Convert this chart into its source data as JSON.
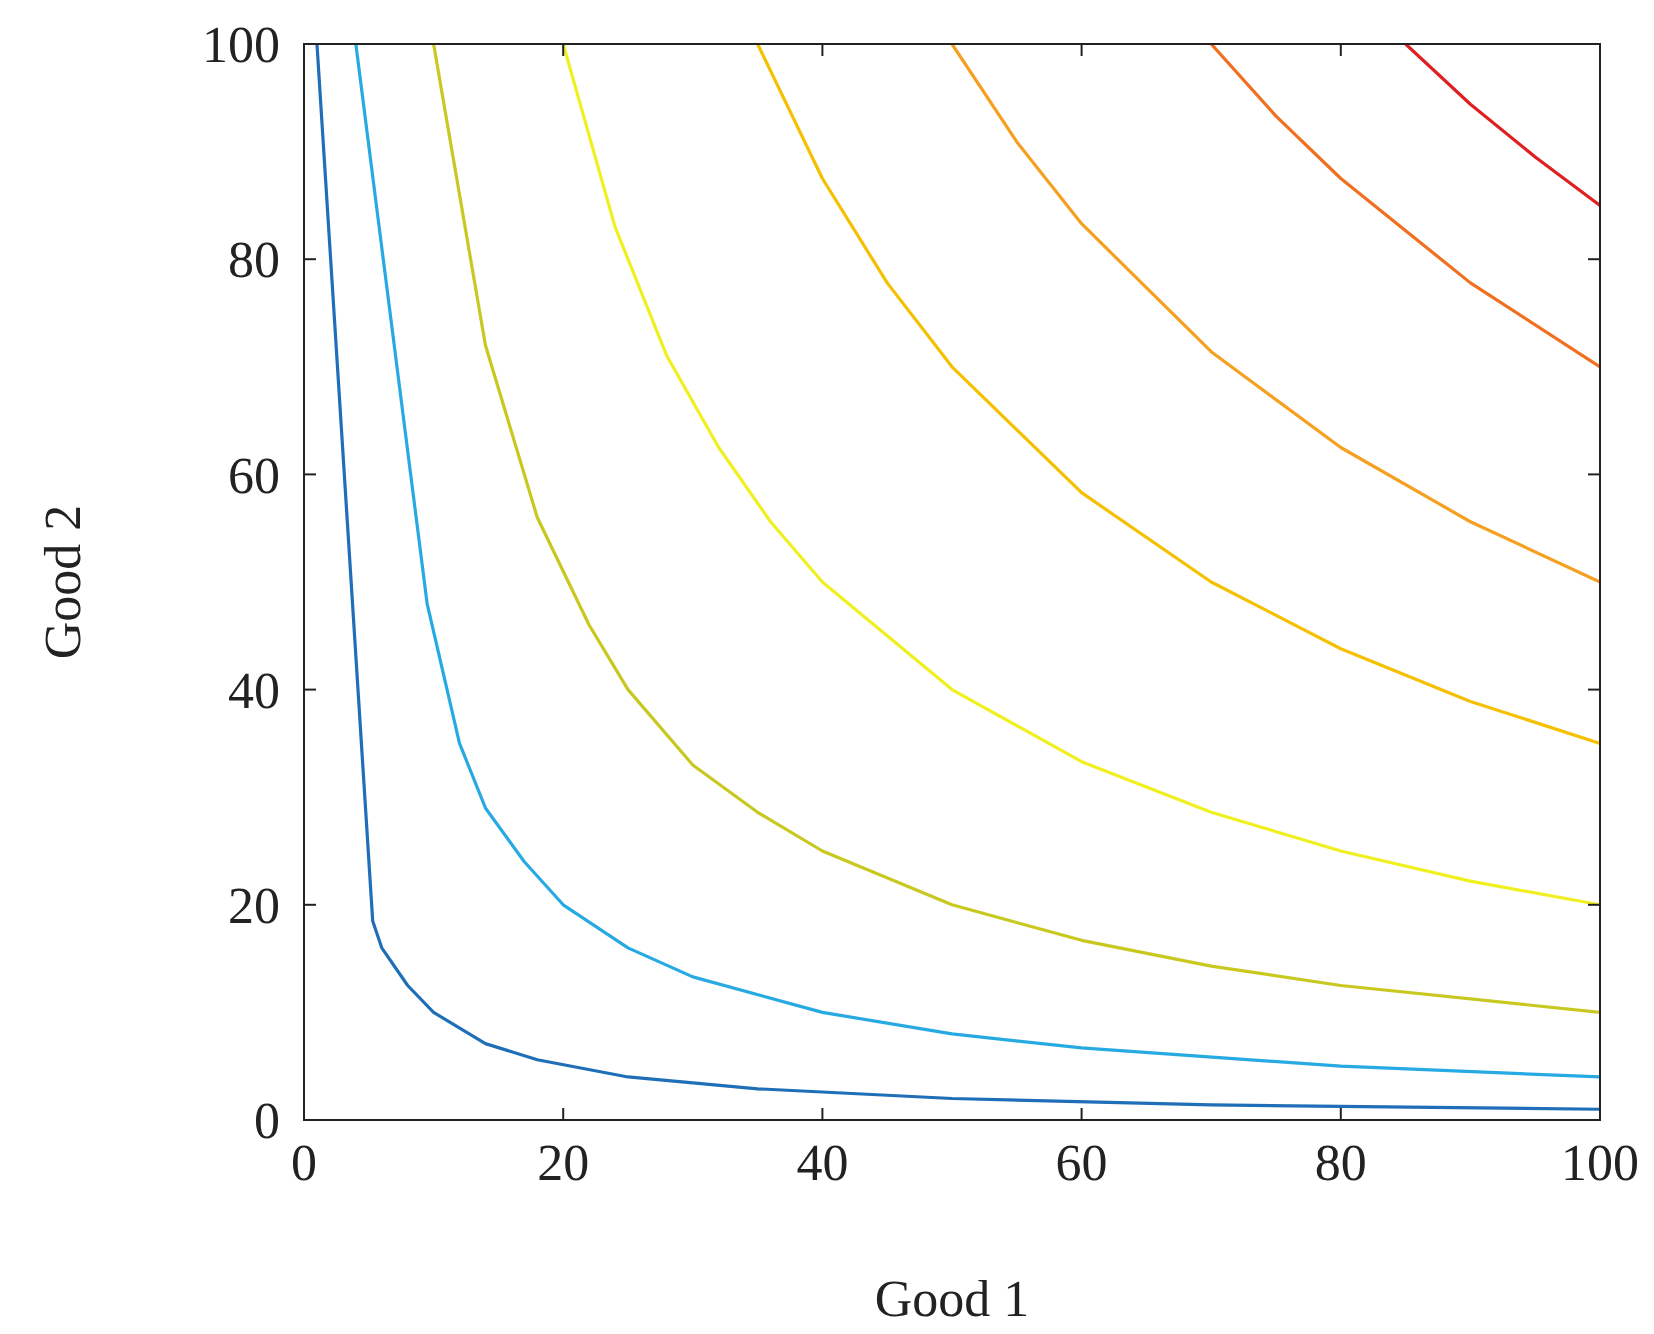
{
  "chart_data": {
    "type": "line",
    "xlabel": "Good 1",
    "ylabel": "Good 2",
    "xlim": [
      0,
      100
    ],
    "ylim": [
      0,
      100
    ],
    "xticks": [
      0,
      20,
      40,
      60,
      80,
      100
    ],
    "yticks": [
      0,
      20,
      40,
      60,
      80,
      100
    ],
    "grid": false,
    "marker": "none",
    "line_style": "solid",
    "series": [
      {
        "color": "#1f6fb8",
        "x": [
          1,
          5.3,
          6,
          8,
          10,
          14,
          18,
          25,
          35,
          50,
          70,
          100
        ],
        "values": [
          100,
          18.5,
          16,
          12.5,
          10,
          7.1,
          5.6,
          4,
          2.9,
          2,
          1.4,
          1
        ]
      },
      {
        "color": "#27aae1",
        "x": [
          4,
          9.5,
          12,
          14,
          17,
          20,
          25,
          30,
          40,
          50,
          60,
          80,
          100
        ],
        "values": [
          100,
          48,
          35,
          29,
          24,
          20,
          16,
          13.3,
          10,
          8,
          6.7,
          5,
          4
        ]
      },
      {
        "color": "#c8c820",
        "x": [
          10,
          14,
          18,
          22,
          25,
          30,
          35,
          40,
          50,
          60,
          70,
          80,
          100
        ],
        "values": [
          100,
          72,
          56,
          46,
          40,
          33,
          28.6,
          25,
          20,
          16.7,
          14.3,
          12.5,
          10
        ]
      },
      {
        "color": "#f0f020",
        "x": [
          20,
          24,
          28,
          32,
          36,
          40,
          50,
          60,
          70,
          80,
          90,
          100
        ],
        "values": [
          100,
          83,
          71,
          62.5,
          55.6,
          50,
          40,
          33.3,
          28.6,
          25,
          22.2,
          20
        ]
      },
      {
        "color": "#f5c000",
        "x": [
          35,
          40,
          45,
          50,
          60,
          70,
          80,
          90,
          100
        ],
        "values": [
          100,
          87.5,
          77.8,
          70,
          58.3,
          50,
          43.8,
          38.9,
          35
        ]
      },
      {
        "color": "#f5a020",
        "x": [
          50,
          55,
          60,
          70,
          80,
          90,
          100
        ],
        "values": [
          100,
          90.9,
          83.3,
          71.4,
          62.5,
          55.6,
          50
        ]
      },
      {
        "color": "#f07020",
        "x": [
          70,
          75,
          80,
          90,
          100
        ],
        "values": [
          100,
          93.3,
          87.5,
          77.8,
          70
        ]
      },
      {
        "color": "#e02020",
        "x": [
          85,
          90,
          95,
          100
        ],
        "values": [
          100,
          94.4,
          89.5,
          85
        ]
      }
    ]
  }
}
